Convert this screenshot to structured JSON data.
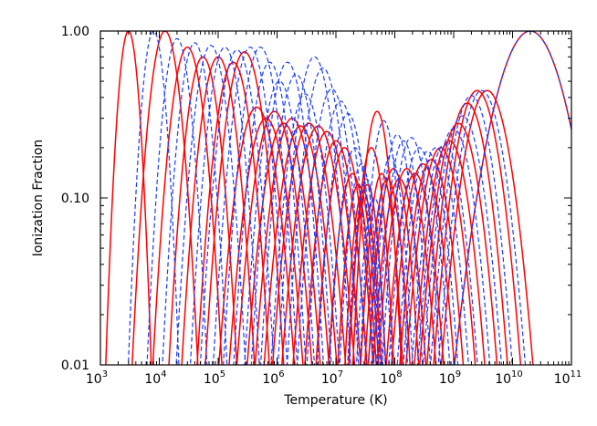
{
  "chart_data": {
    "type": "line",
    "xlabel": "Temperature (K)",
    "ylabel": "Ionization Fraction",
    "x_scale": "log",
    "y_scale": "log",
    "xlim": [
      1000,
      100000000000
    ],
    "ylim": [
      0.01,
      1.0
    ],
    "x_tick_labels": [
      {
        "base": "10",
        "exp": "3"
      },
      {
        "base": "10",
        "exp": "4"
      },
      {
        "base": "10",
        "exp": "5"
      },
      {
        "base": "10",
        "exp": "6"
      },
      {
        "base": "10",
        "exp": "7"
      },
      {
        "base": "10",
        "exp": "8"
      },
      {
        "base": "10",
        "exp": "9"
      },
      {
        "base": "10",
        "exp": "10"
      },
      {
        "base": "10",
        "exp": "11"
      }
    ],
    "y_tick_labels": [
      "1.00",
      "0.10",
      "0.01"
    ],
    "colors": {
      "solid": "#ff0000",
      "dashed": "#1a3cff"
    },
    "grid": false,
    "series": [
      {
        "style": "solid",
        "peaks": [
          [
            3000,
            1.0,
            0.18
          ],
          [
            12500,
            1.0,
            0.26
          ],
          [
            30000,
            0.8,
            0.28
          ],
          [
            55000,
            0.7,
            0.28
          ],
          [
            100000,
            0.7,
            0.3
          ],
          [
            180000,
            0.65,
            0.3
          ],
          [
            280000,
            0.75,
            0.32
          ],
          [
            450000,
            0.35,
            0.34
          ],
          [
            650000,
            0.3,
            0.34
          ],
          [
            900000,
            0.33,
            0.34
          ],
          [
            1300000,
            0.28,
            0.34
          ],
          [
            1800000,
            0.3,
            0.34
          ],
          [
            2500000,
            0.27,
            0.34
          ],
          [
            3500000,
            0.28,
            0.34
          ],
          [
            5000000,
            0.27,
            0.34
          ],
          [
            7000000,
            0.25,
            0.32
          ],
          [
            10000000,
            0.22,
            0.3
          ],
          [
            14000000,
            0.2,
            0.28
          ],
          [
            19000000,
            0.14,
            0.25
          ],
          [
            24000000,
            0.12,
            0.22
          ],
          [
            29000000,
            0.11,
            0.2
          ],
          [
            34000000,
            0.12,
            0.2
          ],
          [
            40000000,
            0.2,
            0.22
          ],
          [
            50000000,
            0.33,
            0.22
          ],
          [
            60000000,
            0.14,
            0.22
          ],
          [
            75000000,
            0.13,
            0.24
          ],
          [
            95000000,
            0.15,
            0.26
          ],
          [
            120000000,
            0.13,
            0.28
          ],
          [
            160000000,
            0.15,
            0.3
          ],
          [
            220000000,
            0.14,
            0.3
          ],
          [
            300000000,
            0.16,
            0.32
          ],
          [
            420000000,
            0.17,
            0.32
          ],
          [
            600000000,
            0.2,
            0.34
          ],
          [
            850000000,
            0.22,
            0.34
          ],
          [
            1200000000,
            0.28,
            0.36
          ],
          [
            1700000000,
            0.37,
            0.36
          ],
          [
            2500000000,
            0.44,
            0.38
          ],
          [
            3700000000,
            0.44,
            0.4
          ],
          [
            20000000000,
            1.0,
            0.6
          ]
        ]
      },
      {
        "style": "dashed",
        "peaks": [
          [
            8000,
            1.0,
            0.2
          ],
          [
            20000,
            0.9,
            0.24
          ],
          [
            40000,
            0.85,
            0.26
          ],
          [
            75000,
            0.82,
            0.28
          ],
          [
            130000,
            0.8,
            0.28
          ],
          [
            210000,
            0.77,
            0.3
          ],
          [
            350000,
            0.8,
            0.3
          ],
          [
            520000,
            0.8,
            0.3
          ],
          [
            750000,
            0.65,
            0.3
          ],
          [
            1100000,
            0.5,
            0.3
          ],
          [
            1500000,
            0.65,
            0.3
          ],
          [
            2100000,
            0.55,
            0.3
          ],
          [
            3000000,
            0.42,
            0.3
          ],
          [
            4300000,
            0.7,
            0.3
          ],
          [
            6000000,
            0.6,
            0.3
          ],
          [
            8500000,
            0.45,
            0.3
          ],
          [
            12000000,
            0.38,
            0.3
          ],
          [
            16000000,
            0.32,
            0.28
          ],
          [
            21000000,
            0.2,
            0.25
          ],
          [
            27000000,
            0.16,
            0.22
          ],
          [
            33000000,
            0.13,
            0.2
          ],
          [
            45000000,
            0.1,
            0.2
          ],
          [
            65000000,
            0.29,
            0.22
          ],
          [
            85000000,
            0.18,
            0.22
          ],
          [
            110000000,
            0.24,
            0.24
          ],
          [
            140000000,
            0.22,
            0.26
          ],
          [
            190000000,
            0.23,
            0.28
          ],
          [
            260000000,
            0.2,
            0.3
          ],
          [
            360000000,
            0.19,
            0.3
          ],
          [
            500000000,
            0.2,
            0.32
          ],
          [
            700000000,
            0.21,
            0.32
          ],
          [
            1000000000,
            0.26,
            0.34
          ],
          [
            1400000000,
            0.31,
            0.36
          ],
          [
            2000000000,
            0.41,
            0.36
          ],
          [
            3000000000,
            0.44,
            0.38
          ],
          [
            20000000000,
            1.0,
            0.6
          ]
        ]
      }
    ]
  }
}
